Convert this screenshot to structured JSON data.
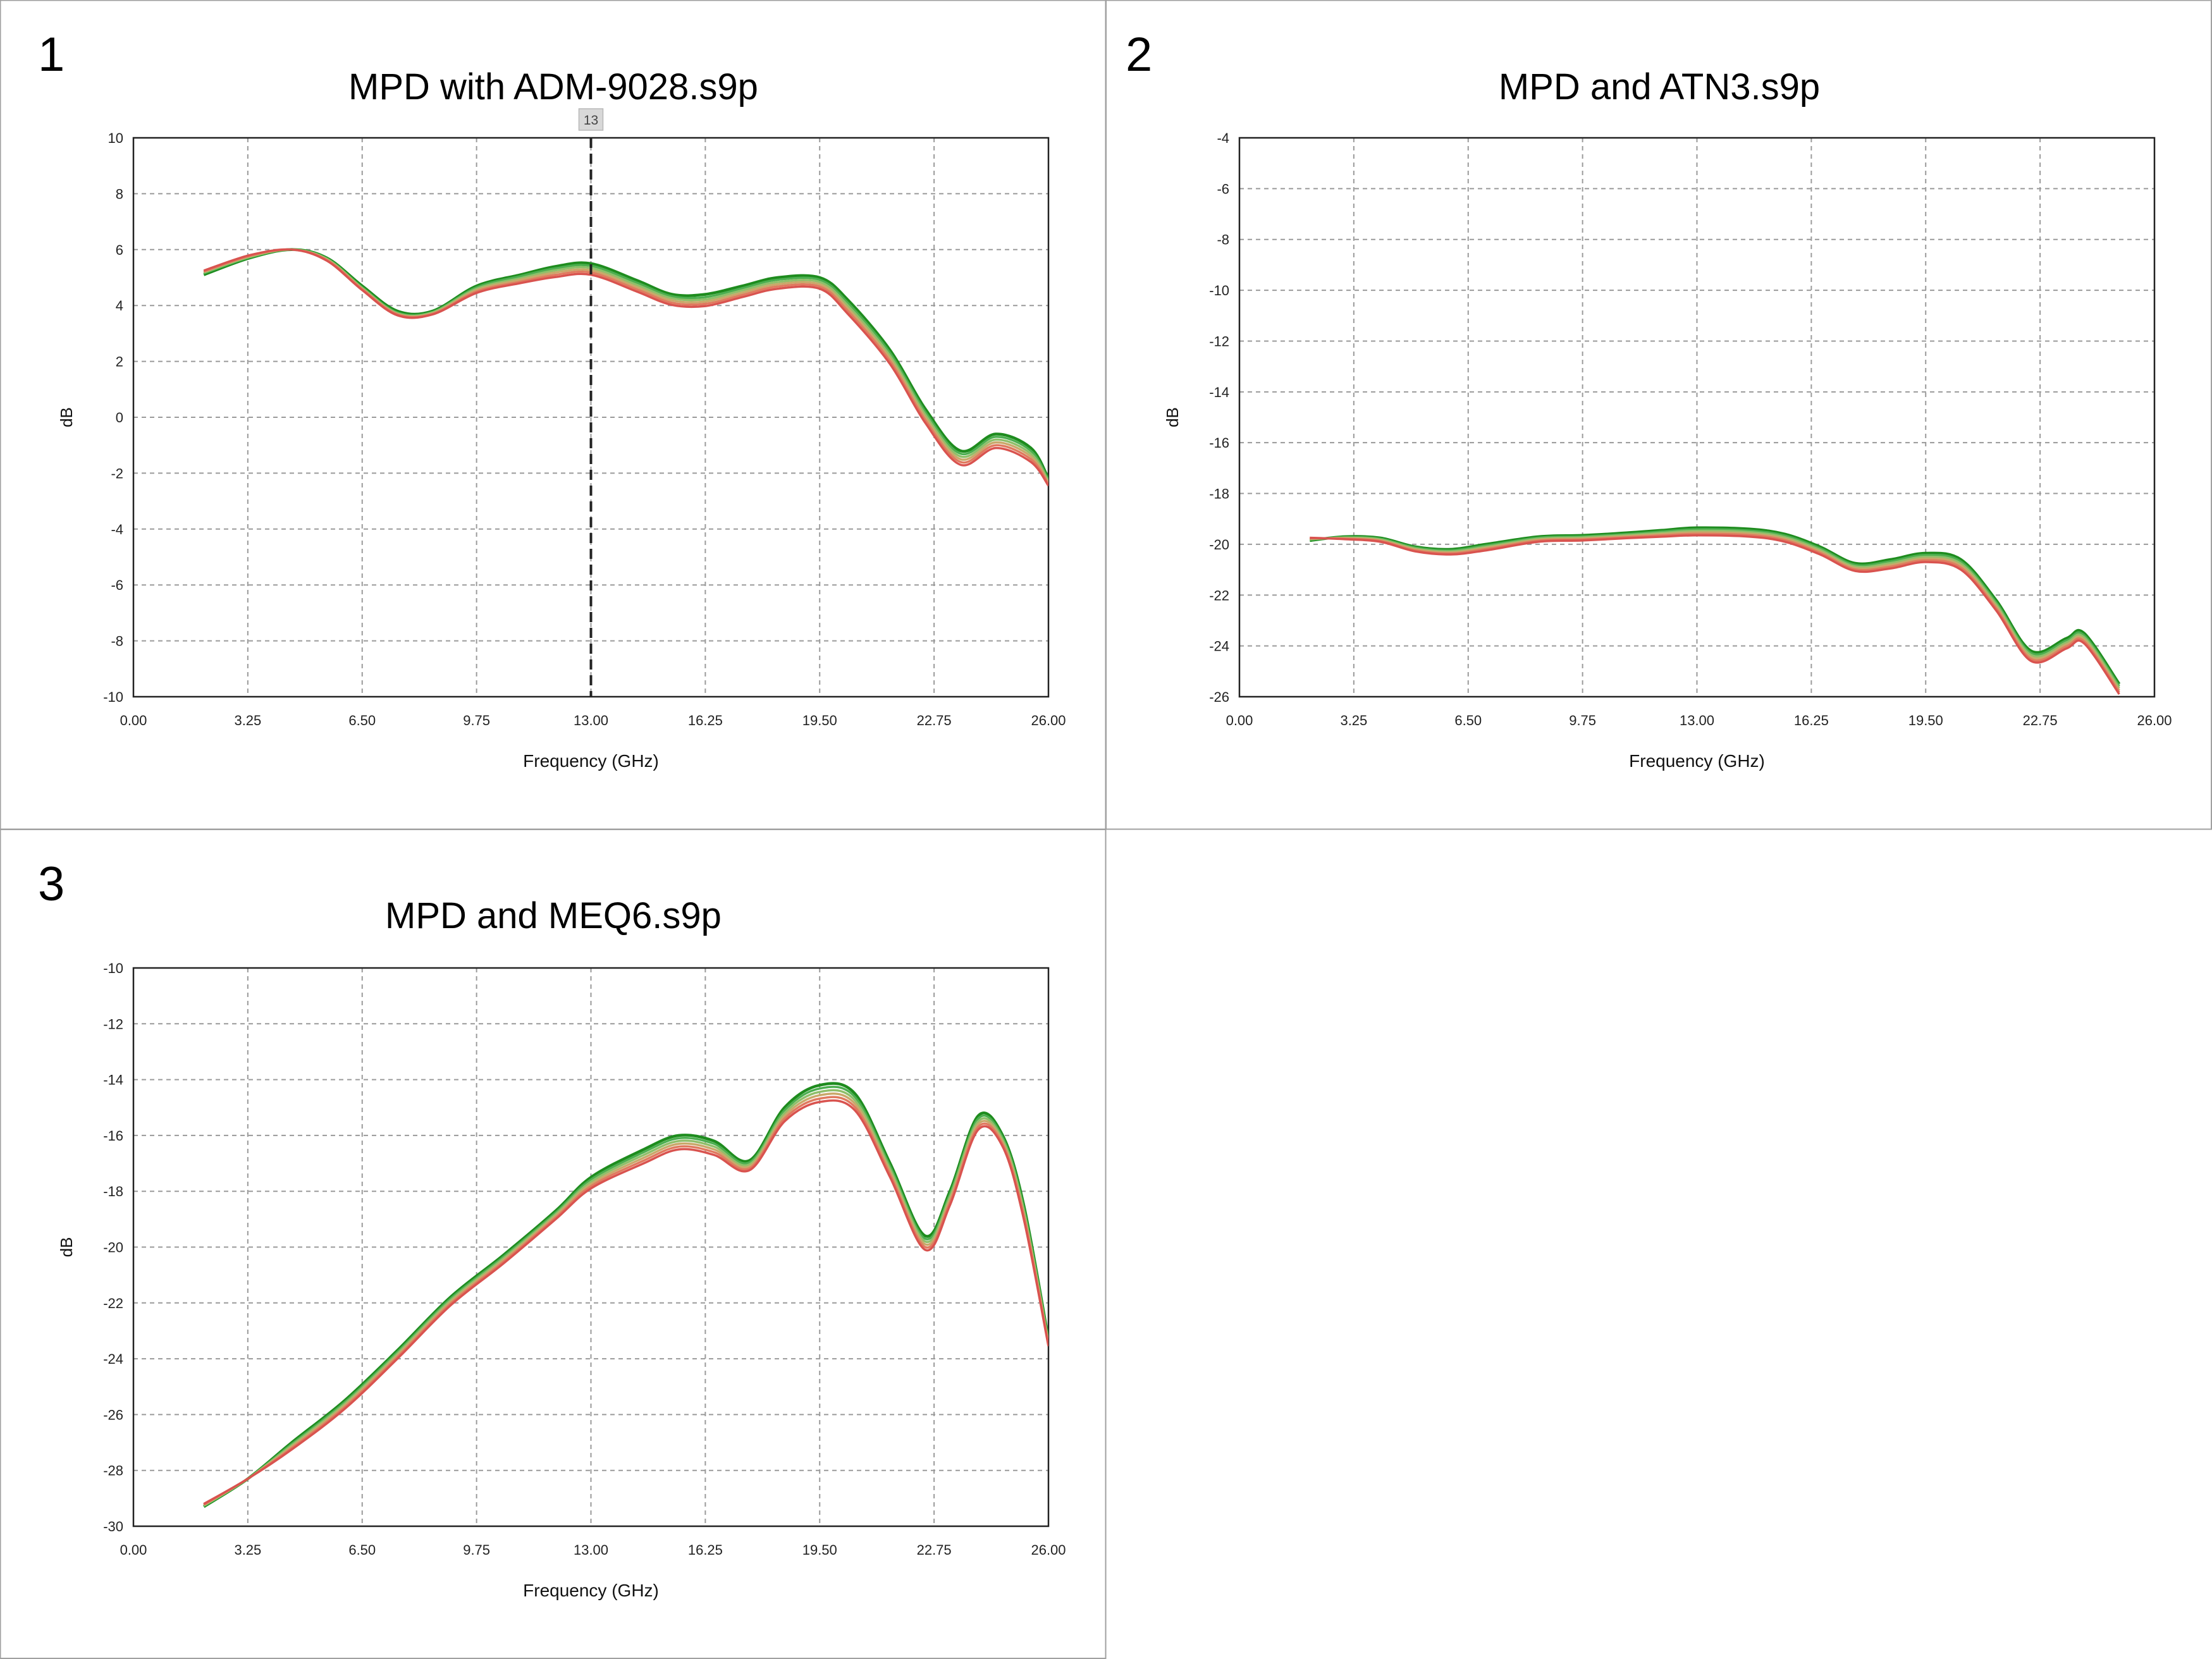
{
  "panels": [
    {
      "number": "1",
      "title": "MPD with ADM-9028.s9p",
      "cursor_label": "13",
      "chart_data": {
        "type": "line",
        "title": "MPD with ADM-9028.s9p",
        "xlabel": "Frequency (GHz)",
        "ylabel": "dB",
        "xlim": [
          0,
          26
        ],
        "ylim": [
          -10,
          10
        ],
        "xticks": [
          "0.00",
          "3.25",
          "6.50",
          "9.75",
          "13.00",
          "16.25",
          "19.50",
          "22.75",
          "26.00"
        ],
        "yticks": [
          "10",
          "8",
          "6",
          "4",
          "2",
          "0",
          "-2",
          "-4",
          "-6",
          "-8",
          "-10"
        ],
        "grid": true,
        "marker_x": 13,
        "x": [
          2.0,
          3.3,
          4.5,
          5.5,
          6.5,
          7.5,
          8.5,
          9.75,
          11.0,
          12.0,
          13.0,
          14.3,
          15.3,
          16.25,
          17.3,
          18.3,
          19.5,
          20.3,
          21.5,
          22.5,
          23.5,
          24.5,
          25.5,
          26.0
        ],
        "series": [
          {
            "color": "#1e8c1e",
            "values": [
              5.1,
              5.7,
              6.0,
              5.7,
              4.7,
              3.8,
              3.8,
              4.7,
              5.1,
              5.4,
              5.5,
              4.9,
              4.4,
              4.4,
              4.7,
              5.0,
              5.0,
              4.2,
              2.4,
              0.3,
              -1.2,
              -0.6,
              -1.1,
              -2.2
            ]
          },
          {
            "color": "#4caf50",
            "values": [
              5.15,
              5.72,
              6.0,
              5.68,
              4.65,
              3.75,
              3.77,
              4.65,
              5.05,
              5.33,
              5.42,
              4.82,
              4.33,
              4.3,
              4.62,
              4.92,
              4.92,
              4.1,
              2.3,
              0.2,
              -1.3,
              -0.7,
              -1.2,
              -2.25
            ]
          },
          {
            "color": "#8fbf6a",
            "values": [
              5.18,
              5.74,
              6.0,
              5.66,
              4.62,
              3.72,
              3.75,
              4.6,
              4.98,
              5.26,
              5.34,
              4.74,
              4.26,
              4.22,
              4.54,
              4.84,
              4.84,
              4.0,
              2.2,
              0.1,
              -1.4,
              -0.8,
              -1.3,
              -2.3
            ]
          },
          {
            "color": "#c9a86a",
            "values": [
              5.2,
              5.76,
              6.0,
              5.64,
              4.6,
              3.7,
              3.72,
              4.55,
              4.92,
              5.18,
              5.26,
              4.66,
              4.18,
              4.14,
              4.46,
              4.76,
              4.76,
              3.9,
              2.1,
              0.0,
              -1.5,
              -0.9,
              -1.4,
              -2.35
            ]
          },
          {
            "color": "#e07a5f",
            "values": [
              5.22,
              5.78,
              6.0,
              5.62,
              4.58,
              3.68,
              3.7,
              4.5,
              4.85,
              5.1,
              5.18,
              4.58,
              4.1,
              4.06,
              4.38,
              4.68,
              4.68,
              3.8,
              2.0,
              -0.1,
              -1.6,
              -1.0,
              -1.5,
              -2.4
            ]
          },
          {
            "color": "#d9534f",
            "values": [
              5.25,
              5.8,
              6.0,
              5.6,
              4.55,
              3.65,
              3.68,
              4.45,
              4.8,
              5.02,
              5.1,
              4.5,
              4.02,
              3.98,
              4.3,
              4.6,
              4.6,
              3.7,
              1.9,
              -0.2,
              -1.7,
              -1.1,
              -1.6,
              -2.45
            ]
          }
        ]
      }
    },
    {
      "number": "2",
      "title": "MPD and ATN3.s9p",
      "chart_data": {
        "type": "line",
        "title": "MPD and ATN3.s9p",
        "xlabel": "Frequency (GHz)",
        "ylabel": "dB",
        "xlim": [
          0,
          26
        ],
        "ylim": [
          -26,
          -4
        ],
        "xticks": [
          "0.00",
          "3.25",
          "6.50",
          "9.75",
          "13.00",
          "16.25",
          "19.50",
          "22.75",
          "26.00"
        ],
        "yticks": [
          "-4",
          "-6",
          "-8",
          "-10",
          "-12",
          "-14",
          "-16",
          "-18",
          "-20",
          "-22",
          "-24",
          "-26"
        ],
        "grid": true,
        "x": [
          2.0,
          3.0,
          4.0,
          5.0,
          6.0,
          7.0,
          8.5,
          9.75,
          11.0,
          12.0,
          13.0,
          14.5,
          15.5,
          16.5,
          17.5,
          18.5,
          19.5,
          20.5,
          21.5,
          22.5,
          23.5,
          24.0,
          25.0
        ],
        "series": [
          {
            "color": "#1e8c1e",
            "values": [
              -19.85,
              -19.7,
              -19.75,
              -20.1,
              -20.2,
              -20.0,
              -19.7,
              -19.65,
              -19.55,
              -19.45,
              -19.35,
              -19.4,
              -19.6,
              -20.1,
              -20.75,
              -20.6,
              -20.35,
              -20.6,
              -22.2,
              -24.2,
              -23.7,
              -23.5,
              -25.5
            ]
          },
          {
            "color": "#4caf50",
            "values": [
              -19.82,
              -19.72,
              -19.78,
              -20.13,
              -20.24,
              -20.05,
              -19.74,
              -19.69,
              -19.6,
              -19.5,
              -19.41,
              -19.46,
              -19.66,
              -20.16,
              -20.81,
              -20.67,
              -20.42,
              -20.68,
              -22.28,
              -24.28,
              -23.78,
              -23.58,
              -25.58
            ]
          },
          {
            "color": "#8fbf6a",
            "values": [
              -19.8,
              -19.74,
              -19.81,
              -20.17,
              -20.28,
              -20.1,
              -19.78,
              -19.73,
              -19.64,
              -19.55,
              -19.47,
              -19.52,
              -19.72,
              -20.22,
              -20.87,
              -20.74,
              -20.49,
              -20.76,
              -22.36,
              -24.36,
              -23.86,
              -23.66,
              -25.66
            ]
          },
          {
            "color": "#c9a86a",
            "values": [
              -19.78,
              -19.76,
              -19.84,
              -20.2,
              -20.32,
              -20.14,
              -19.82,
              -19.77,
              -19.68,
              -19.6,
              -19.53,
              -19.58,
              -19.78,
              -20.28,
              -20.93,
              -20.81,
              -20.56,
              -20.84,
              -22.44,
              -24.44,
              -23.94,
              -23.74,
              -25.74
            ]
          },
          {
            "color": "#e07a5f",
            "values": [
              -19.76,
              -19.78,
              -19.87,
              -20.24,
              -20.36,
              -20.19,
              -19.86,
              -19.81,
              -19.72,
              -19.65,
              -19.59,
              -19.64,
              -19.84,
              -20.34,
              -20.99,
              -20.88,
              -20.63,
              -20.92,
              -22.52,
              -24.52,
              -24.02,
              -23.82,
              -25.82
            ]
          },
          {
            "color": "#d9534f",
            "values": [
              -19.74,
              -19.8,
              -19.9,
              -20.28,
              -20.4,
              -20.24,
              -19.9,
              -19.85,
              -19.76,
              -19.7,
              -19.65,
              -19.7,
              -19.9,
              -20.4,
              -21.05,
              -20.95,
              -20.7,
              -21.0,
              -22.6,
              -24.6,
              -24.1,
              -23.9,
              -25.9
            ]
          }
        ]
      }
    },
    {
      "number": "3",
      "title": "MPD and MEQ6.s9p",
      "chart_data": {
        "type": "line",
        "title": "MPD and MEQ6.s9p",
        "xlabel": "Frequency (GHz)",
        "ylabel": "dB",
        "xlim": [
          0,
          26
        ],
        "ylim": [
          -30,
          -10
        ],
        "xticks": [
          "0.00",
          "3.25",
          "6.50",
          "9.75",
          "13.00",
          "16.25",
          "19.50",
          "22.75",
          "26.00"
        ],
        "yticks": [
          "-10",
          "-12",
          "-14",
          "-16",
          "-18",
          "-20",
          "-22",
          "-24",
          "-26",
          "-28",
          "-30"
        ],
        "grid": true,
        "x": [
          2.0,
          3.25,
          4.5,
          6.0,
          7.5,
          9.0,
          10.5,
          12.0,
          13.0,
          14.5,
          15.5,
          16.5,
          17.5,
          18.5,
          19.5,
          20.5,
          21.5,
          22.5,
          23.2,
          24.0,
          24.7,
          25.3,
          26.0
        ],
        "series": [
          {
            "color": "#1e8c1e",
            "values": [
              -29.3,
              -28.3,
              -27.0,
              -25.5,
              -23.7,
              -21.8,
              -20.3,
              -18.7,
              -17.5,
              -16.5,
              -16.0,
              -16.2,
              -16.9,
              -15.0,
              -14.2,
              -14.5,
              -17.0,
              -19.6,
              -18.0,
              -15.3,
              -16.0,
              -18.5,
              -23.3
            ]
          },
          {
            "color": "#4caf50",
            "values": [
              -29.28,
              -28.3,
              -27.05,
              -25.56,
              -23.76,
              -21.86,
              -20.36,
              -18.76,
              -17.58,
              -16.6,
              -16.1,
              -16.3,
              -16.97,
              -15.1,
              -14.32,
              -14.62,
              -17.1,
              -19.7,
              -18.1,
              -15.4,
              -16.08,
              -18.6,
              -23.35
            ]
          },
          {
            "color": "#8fbf6a",
            "values": [
              -29.26,
              -28.3,
              -27.1,
              -25.62,
              -23.82,
              -21.92,
              -20.42,
              -18.82,
              -17.66,
              -16.7,
              -16.2,
              -16.4,
              -17.04,
              -15.2,
              -14.44,
              -14.74,
              -17.2,
              -19.8,
              -18.2,
              -15.5,
              -16.16,
              -18.7,
              -23.4
            ]
          },
          {
            "color": "#c9a86a",
            "values": [
              -29.24,
              -28.3,
              -27.15,
              -25.68,
              -23.88,
              -21.98,
              -20.48,
              -18.88,
              -17.74,
              -16.8,
              -16.3,
              -16.5,
              -17.11,
              -15.3,
              -14.56,
              -14.86,
              -17.3,
              -19.9,
              -18.3,
              -15.6,
              -16.24,
              -18.8,
              -23.45
            ]
          },
          {
            "color": "#e07a5f",
            "values": [
              -29.22,
              -28.3,
              -27.2,
              -25.74,
              -23.94,
              -22.04,
              -20.54,
              -18.94,
              -17.82,
              -16.9,
              -16.4,
              -16.6,
              -17.18,
              -15.4,
              -14.68,
              -14.98,
              -17.4,
              -20.0,
              -18.4,
              -15.7,
              -16.32,
              -18.9,
              -23.5
            ]
          },
          {
            "color": "#d9534f",
            "values": [
              -29.2,
              -28.3,
              -27.25,
              -25.8,
              -24.0,
              -22.1,
              -20.6,
              -19.0,
              -17.9,
              -17.0,
              -16.5,
              -16.7,
              -17.25,
              -15.5,
              -14.8,
              -15.1,
              -17.5,
              -20.1,
              -18.5,
              -15.8,
              -16.4,
              -19.0,
              -23.55
            ]
          }
        ]
      }
    }
  ]
}
